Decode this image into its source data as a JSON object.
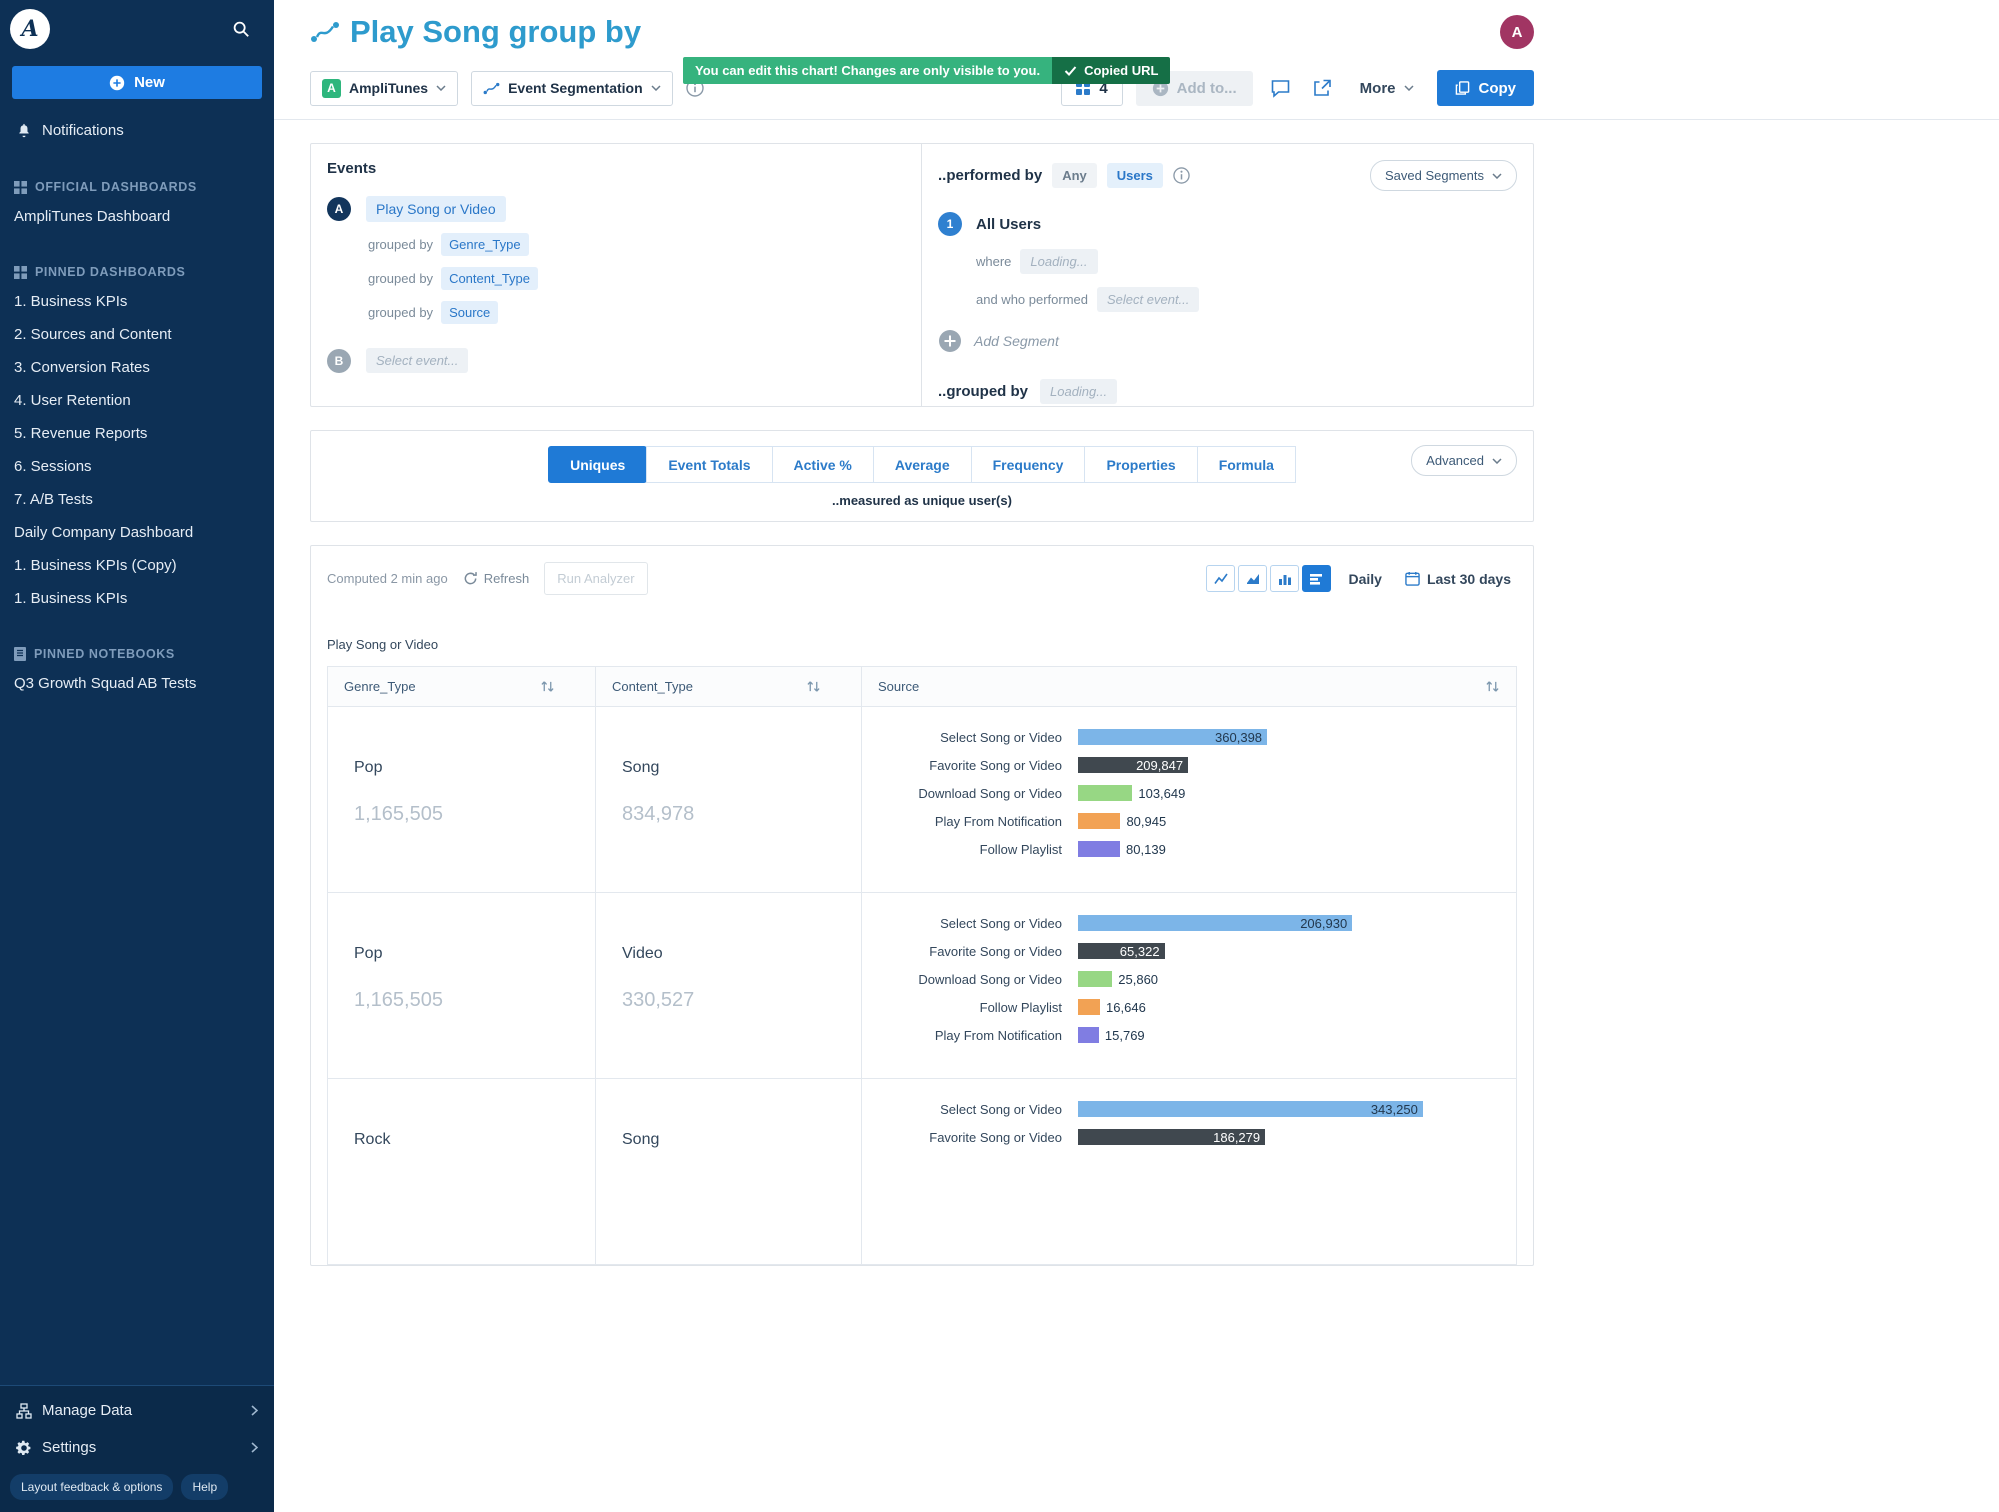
{
  "sidebar": {
    "new_button": "New",
    "notifications": "Notifications",
    "sections": [
      {
        "title": "OFFICIAL DASHBOARDS",
        "items": [
          "AmpliTunes Dashboard"
        ]
      },
      {
        "title": "PINNED DASHBOARDS",
        "items": [
          "1. Business KPIs",
          "2. Sources and Content",
          "3. Conversion Rates",
          "4. User Retention",
          "5. Revenue Reports",
          "6. Sessions",
          "7. A/B Tests",
          "Daily Company Dashboard",
          "1. Business KPIs (Copy)",
          "1. Business KPIs"
        ]
      },
      {
        "title": "PINNED NOTEBOOKS",
        "items": [
          "Q3 Growth Squad AB Tests"
        ]
      }
    ],
    "footer": {
      "manage_data": "Manage Data",
      "settings": "Settings",
      "layout_feedback": "Layout feedback & options",
      "help": "Help"
    }
  },
  "header": {
    "title": "Play Song group by",
    "banner_text": "You can edit this chart! Changes are only visible to you.",
    "copied_label": "Copied URL",
    "avatar_initial": "A"
  },
  "toolbar": {
    "project_badge": "A",
    "project": "AmpliTunes",
    "chart_type": "Event Segmentation",
    "layout_count": "4",
    "add_to": "Add to...",
    "more": "More",
    "copy": "Copy"
  },
  "events": {
    "title": "Events",
    "badge_a": "A",
    "event_a": "Play Song or Video",
    "grouped_by": "grouped by",
    "groups": [
      "Genre_Type",
      "Content_Type",
      "Source"
    ],
    "badge_b": "B",
    "select_event": "Select event..."
  },
  "segment": {
    "performed_by": "..performed by",
    "any": "Any",
    "users": "Users",
    "saved_segments": "Saved Segments",
    "badge": "1",
    "all_users": "All Users",
    "where": "where",
    "loading": "Loading...",
    "who_performed": "and who performed",
    "select_event": "Select event...",
    "add_segment": "Add Segment",
    "grouped_by": "..grouped by",
    "loading2": "Loading..."
  },
  "metric": {
    "tabs": [
      "Uniques",
      "Event Totals",
      "Active %",
      "Average",
      "Frequency",
      "Properties",
      "Formula"
    ],
    "active_tab": "Uniques",
    "advanced": "Advanced",
    "measured": "..measured as unique user(s)"
  },
  "controls": {
    "computed": "Computed 2 min ago",
    "refresh": "Refresh",
    "run_analyzer": "Run Analyzer",
    "daily": "Daily",
    "range": "Last 30 days"
  },
  "table": {
    "chart_label": "Play Song or Video",
    "columns": [
      "Genre_Type",
      "Content_Type",
      "Source"
    ],
    "bar_colors": [
      "#7cb5e8",
      "#40484f",
      "#97d784",
      "#f2a254",
      "#807de2"
    ],
    "rows": [
      {
        "genre": "Pop",
        "genre_total": "1,165,505",
        "content": "Song",
        "content_total": "834,978",
        "bar_scale": 834978,
        "bars": [
          {
            "label": "Select Song or Video",
            "value": "360,398",
            "n": 360398
          },
          {
            "label": "Favorite Song or Video",
            "value": "209,847",
            "n": 209847
          },
          {
            "label": "Download Song or Video",
            "value": "103,649",
            "n": 103649
          },
          {
            "label": "Play From Notification",
            "value": "80,945",
            "n": 80945
          },
          {
            "label": "Follow Playlist",
            "value": "80,139",
            "n": 80139
          }
        ]
      },
      {
        "genre": "Pop",
        "genre_total": "1,165,505",
        "content": "Video",
        "content_total": "330,527",
        "bar_scale": 330527,
        "bars": [
          {
            "label": "Select Song or Video",
            "value": "206,930",
            "n": 206930
          },
          {
            "label": "Favorite Song or Video",
            "value": "65,322",
            "n": 65322
          },
          {
            "label": "Download Song or Video",
            "value": "25,860",
            "n": 25860
          },
          {
            "label": "Follow Playlist",
            "value": "16,646",
            "n": 16646
          },
          {
            "label": "Play From Notification",
            "value": "15,769",
            "n": 15769
          }
        ]
      },
      {
        "genre": "Rock",
        "genre_total": "",
        "content": "Song",
        "content_total": "",
        "bar_scale": 436000,
        "bars": [
          {
            "label": "Select Song or Video",
            "value": "343,250",
            "n": 343250
          },
          {
            "label": "Favorite Song or Video",
            "value": "186,279",
            "n": 186279
          }
        ]
      }
    ]
  }
}
